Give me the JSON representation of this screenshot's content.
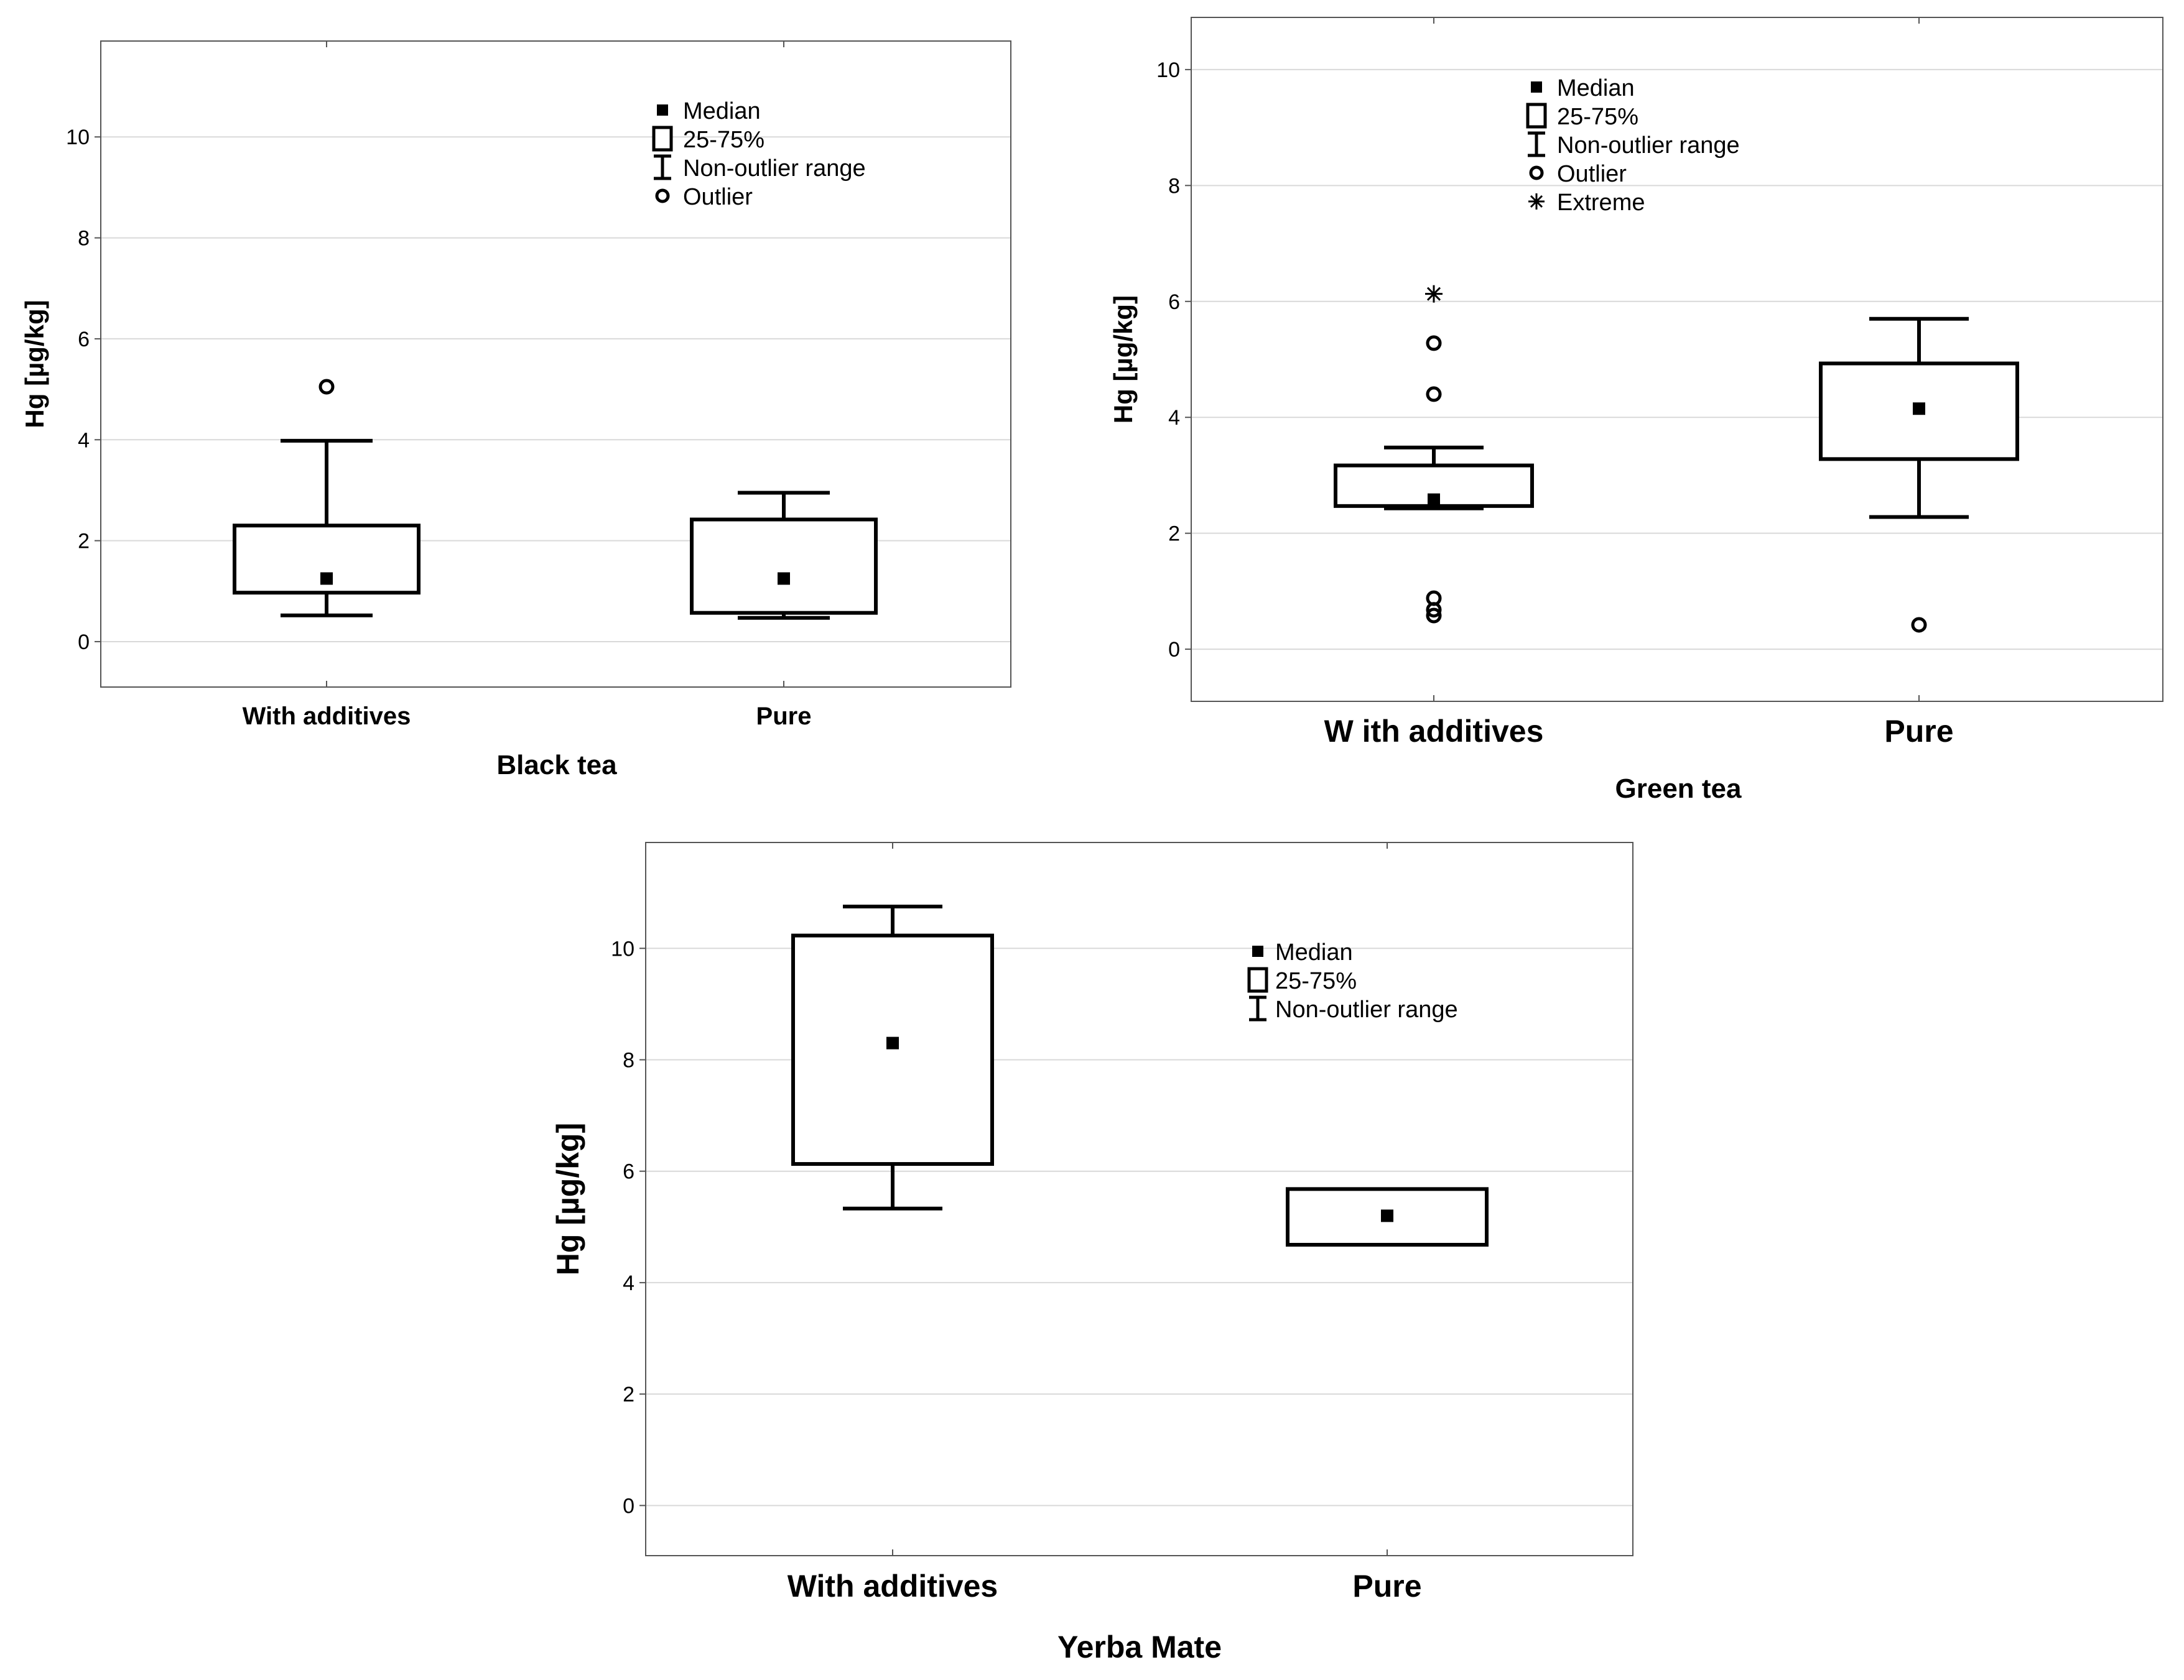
{
  "chart_data": [
    {
      "type": "box",
      "title": "Black tea",
      "ylabel": "Hg [µg/kg]",
      "ylim": [
        -0.9,
        11.9
      ],
      "yticks": [
        0,
        2,
        4,
        6,
        8,
        10
      ],
      "categories": [
        "With additives",
        "Pure"
      ],
      "boxes": [
        {
          "category": "With additives",
          "median": 1.25,
          "q1": 0.97,
          "q3": 2.3,
          "whisker_low": 0.52,
          "whisker_high": 3.98,
          "outliers": [
            5.05
          ],
          "extremes": []
        },
        {
          "category": "Pure",
          "median": 1.25,
          "q1": 0.57,
          "q3": 2.42,
          "whisker_low": 0.47,
          "whisker_high": 2.95,
          "outliers": [],
          "extremes": []
        }
      ],
      "legend": [
        {
          "symbol": "median",
          "label": "Median"
        },
        {
          "symbol": "box",
          "label": "25-75%"
        },
        {
          "symbol": "whisker",
          "label": "Non-outlier range"
        },
        {
          "symbol": "outlier",
          "label": "Outlier"
        }
      ]
    },
    {
      "type": "box",
      "title": "Green tea",
      "ylabel": "Hg [µg/kg]",
      "ylim": [
        -0.9,
        10.9
      ],
      "yticks": [
        0,
        2,
        4,
        6,
        8,
        10
      ],
      "categories": [
        "W ith additives",
        "Pure"
      ],
      "boxes": [
        {
          "category": "W ith additives",
          "median": 2.58,
          "q1": 2.47,
          "q3": 3.17,
          "whisker_low": 2.43,
          "whisker_high": 3.48,
          "outliers": [
            5.28,
            4.4,
            0.88,
            0.68,
            0.58
          ],
          "extremes": [
            6.13
          ]
        },
        {
          "category": "Pure",
          "median": 4.15,
          "q1": 3.28,
          "q3": 4.93,
          "whisker_low": 2.28,
          "whisker_high": 5.7,
          "outliers": [
            0.42
          ],
          "extremes": []
        }
      ],
      "legend": [
        {
          "symbol": "median",
          "label": "Median"
        },
        {
          "symbol": "box",
          "label": "25-75%"
        },
        {
          "symbol": "whisker",
          "label": "Non-outlier range"
        },
        {
          "symbol": "outlier",
          "label": "Outlier"
        },
        {
          "symbol": "extreme",
          "label": "Extreme"
        }
      ]
    },
    {
      "type": "box",
      "title": "Yerba Mate",
      "ylabel": "Hg [µg/kg]",
      "ylim": [
        -0.9,
        11.9
      ],
      "yticks": [
        0,
        2,
        4,
        6,
        8,
        10
      ],
      "categories": [
        "With additives",
        "Pure"
      ],
      "boxes": [
        {
          "category": "With additives",
          "median": 8.3,
          "q1": 6.13,
          "q3": 10.23,
          "whisker_low": 5.33,
          "whisker_high": 10.75,
          "outliers": [],
          "extremes": []
        },
        {
          "category": "Pure",
          "median": 5.2,
          "q1": 4.68,
          "q3": 5.68,
          "whisker_low": null,
          "whisker_high": null,
          "outliers": [],
          "extremes": []
        }
      ],
      "legend": [
        {
          "symbol": "median",
          "label": "Median"
        },
        {
          "symbol": "box",
          "label": "25-75%"
        },
        {
          "symbol": "whisker",
          "label": "Non-outlier range"
        }
      ]
    }
  ]
}
